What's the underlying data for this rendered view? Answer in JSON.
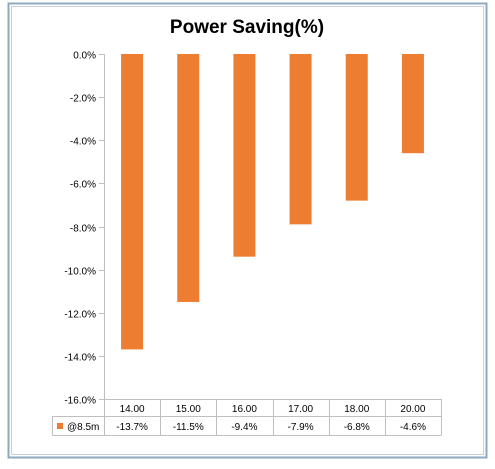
{
  "chart_data": {
    "type": "bar",
    "title": "Power Saving(%)",
    "categories": [
      "14.00",
      "15.00",
      "16.00",
      "17.00",
      "18.00",
      "20.00"
    ],
    "series": [
      {
        "name": "@8.5m",
        "values": [
          -13.7,
          -11.5,
          -9.4,
          -7.9,
          -6.8,
          -4.6
        ],
        "value_labels": [
          "-13.7%",
          "-11.5%",
          "-9.4%",
          "-7.9%",
          "-6.8%",
          "-4.6%"
        ],
        "color": "#ED7D31"
      }
    ],
    "ylim": [
      -16.0,
      0.0
    ],
    "yticks": [
      0.0,
      -2.0,
      -4.0,
      -6.0,
      -8.0,
      -10.0,
      -12.0,
      -14.0,
      -16.0
    ],
    "ytick_labels": [
      "0.0%",
      "-2.0%",
      "-4.0%",
      "-6.0%",
      "-8.0%",
      "-10.0%",
      "-12.0%",
      "-14.0%",
      "-16.0%"
    ],
    "xlabel": "",
    "ylabel": "",
    "grid": false,
    "legend": "data-table",
    "colors": {
      "frame_outer": "#8EA9C1",
      "frame_inner": "#C8CFD8",
      "axis_line": "#BFBFBF",
      "text": "#000000",
      "table_border": "#BFBFBF"
    }
  }
}
